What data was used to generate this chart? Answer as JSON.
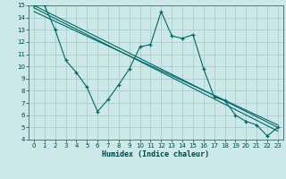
{
  "xlabel": "Humidex (Indice chaleur)",
  "bg_color": "#cce8e8",
  "grid_color": "#b0d0d0",
  "line_color": "#006666",
  "xlim": [
    -0.5,
    23.5
  ],
  "ylim": [
    4,
    15
  ],
  "xticks": [
    0,
    1,
    2,
    3,
    4,
    5,
    6,
    7,
    8,
    9,
    10,
    11,
    12,
    13,
    14,
    15,
    16,
    17,
    18,
    19,
    20,
    21,
    22,
    23
  ],
  "yticks": [
    4,
    5,
    6,
    7,
    8,
    9,
    10,
    11,
    12,
    13,
    14,
    15
  ],
  "series1_x": [
    0,
    1,
    2,
    3,
    4,
    5,
    6,
    7,
    8,
    9,
    10,
    11,
    12,
    13,
    14,
    15,
    16,
    17,
    18,
    19,
    20,
    21,
    22,
    23
  ],
  "series1_y": [
    15,
    15,
    13,
    10.5,
    9.5,
    8.3,
    6.3,
    7.3,
    8.5,
    9.8,
    11.6,
    11.8,
    14.5,
    12.5,
    12.3,
    12.6,
    9.8,
    7.5,
    7.2,
    6.0,
    5.5,
    5.2,
    4.3,
    5.0
  ],
  "series2_x": [
    0,
    23
  ],
  "series2_y": [
    15,
    5.0
  ],
  "series3_x": [
    0,
    23
  ],
  "series3_y": [
    14.8,
    4.7
  ],
  "series4_x": [
    0,
    23
  ],
  "series4_y": [
    14.5,
    5.2
  ]
}
